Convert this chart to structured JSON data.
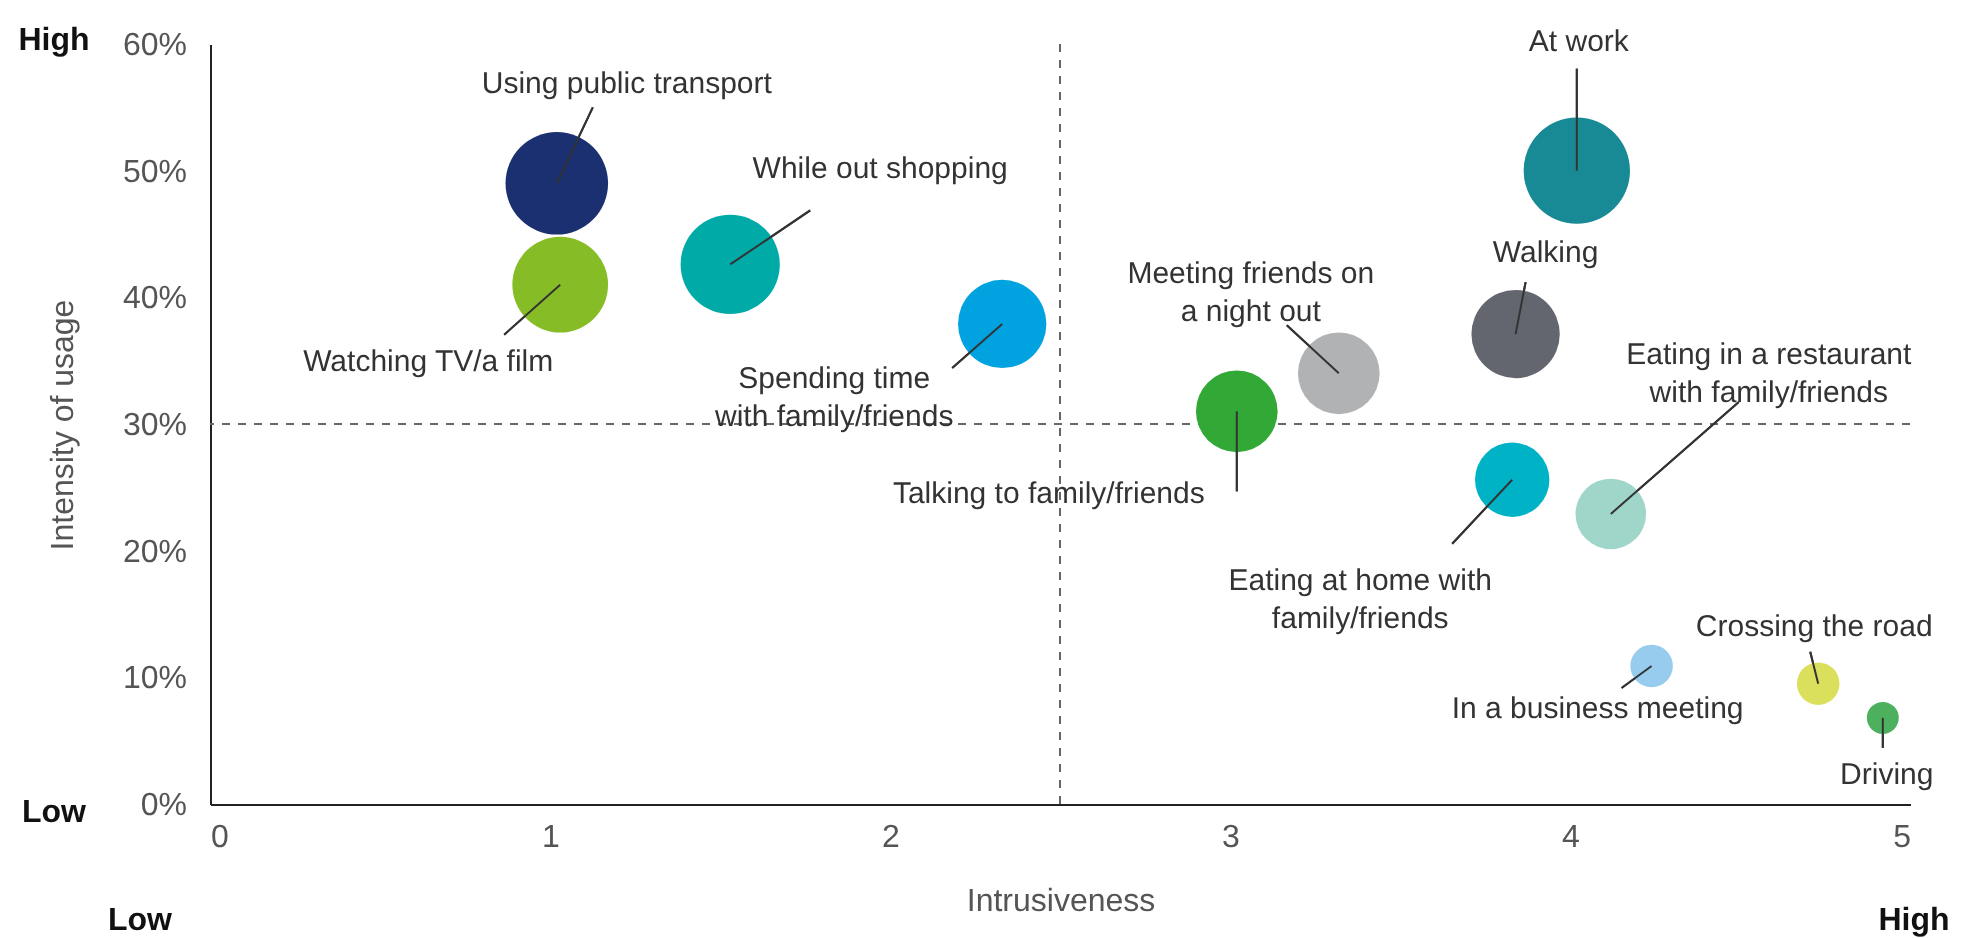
{
  "chart_data": {
    "type": "bubble",
    "xlabel": "Intrusiveness",
    "ylabel": "Intensity of usage",
    "xlim": [
      0,
      5
    ],
    "xticks": [
      0,
      1,
      2,
      3,
      4,
      5
    ],
    "ylim": [
      0,
      60
    ],
    "yticks": [
      {
        "value": 0,
        "label": "0%"
      },
      {
        "value": 10,
        "label": "10%"
      },
      {
        "value": 20,
        "label": "20%"
      },
      {
        "value": 30,
        "label": "30%"
      },
      {
        "value": 40,
        "label": "40%"
      },
      {
        "value": 50,
        "label": "50%"
      },
      {
        "value": 60,
        "label": "60%"
      }
    ],
    "grid": false,
    "series": [
      {
        "name": "Using public transport",
        "color": "#1b3070",
        "x": [
          1.02
        ],
        "values": [
          49
        ],
        "sizes": [
          0.93
        ]
      },
      {
        "name": "Watching TV/a film",
        "color": "#86bc25",
        "x": [
          1.03
        ],
        "values": [
          41
        ],
        "sizes": [
          0.81
        ]
      },
      {
        "name": "While out shopping",
        "color": "#00aaa6",
        "x": [
          1.53
        ],
        "values": [
          42.6
        ],
        "sizes": [
          0.87
        ]
      },
      {
        "name": "Spending time with family/friends",
        "color": "#00a3e0",
        "x": [
          2.33
        ],
        "values": [
          37.9
        ],
        "sizes": [
          0.69
        ]
      },
      {
        "name": "Talking to family/friends",
        "color": "#32a836",
        "x": [
          3.02
        ],
        "values": [
          31
        ],
        "sizes": [
          0.59
        ]
      },
      {
        "name": "Meeting friends on a night out",
        "color": "#b0b2b3",
        "x": [
          3.32
        ],
        "values": [
          34
        ],
        "sizes": [
          0.59
        ]
      },
      {
        "name": "Walking",
        "color": "#63666e",
        "x": [
          3.84
        ],
        "values": [
          37.1
        ],
        "sizes": [
          0.69
        ]
      },
      {
        "name": "At work",
        "color": "#188a96",
        "x": [
          4.02
        ],
        "values": [
          50
        ],
        "sizes": [
          1
        ]
      },
      {
        "name": "Eating at home with family/friends",
        "color": "#00b2c6",
        "x": [
          3.83
        ],
        "values": [
          25.6
        ],
        "sizes": [
          0.49
        ]
      },
      {
        "name": "Eating in a restaurant with family/friends",
        "color": "#a0d5c9",
        "x": [
          4.12
        ],
        "values": [
          22.9
        ],
        "sizes": [
          0.44
        ]
      },
      {
        "name": "In a business meeting",
        "color": "#98ccef",
        "x": [
          4.24
        ],
        "values": [
          10.9
        ],
        "sizes": [
          0.16
        ]
      },
      {
        "name": "Crossing the road",
        "color": "#dbe05c",
        "x": [
          4.73
        ],
        "values": [
          9.5
        ],
        "sizes": [
          0.16
        ]
      },
      {
        "name": "Driving",
        "color": "#4cb05e",
        "x": [
          4.92
        ],
        "values": [
          6.8
        ],
        "sizes": [
          0.09
        ]
      }
    ],
    "ref_lines": [
      {
        "axis": "x",
        "value": 2.5,
        "line_style": "dashed"
      },
      {
        "axis": "y",
        "value": 30,
        "line_style": "dashed"
      }
    ],
    "annotations": [
      "High",
      "Low",
      "Low",
      "High"
    ]
  }
}
